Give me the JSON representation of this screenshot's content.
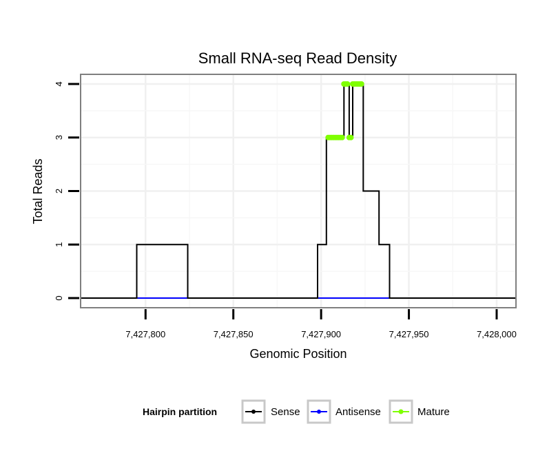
{
  "chart_data": {
    "type": "line",
    "title": "Small RNA-seq Read Density",
    "xlabel": "Genomic Position",
    "ylabel": "Total Reads",
    "xlim": [
      7427763,
      7428011
    ],
    "ylim": [
      -0.18,
      4.18
    ],
    "x_ticks": [
      7427800,
      7427850,
      7427900,
      7427950,
      7428000
    ],
    "x_tick_labels": [
      "7,427,800",
      "7,427,850",
      "7,427,900",
      "7,427,950",
      "7,428,000"
    ],
    "y_ticks": [
      0,
      1,
      2,
      3,
      4
    ],
    "y_tick_labels": [
      "0",
      "1",
      "2",
      "3",
      "4"
    ],
    "grid": true,
    "legend": {
      "title": "Hairpin partition",
      "position": "bottom",
      "entries": [
        "Sense",
        "Antisense",
        "Mature"
      ]
    },
    "colors": {
      "sense": "#000000",
      "antisense": "#0000ff",
      "mature": "#7fff00"
    },
    "series": [
      {
        "name": "Sense",
        "x": [
          7427763,
          7427795,
          7427795,
          7427824,
          7427824,
          7427898,
          7427898,
          7427903,
          7427903,
          7427913,
          7427913,
          7427916,
          7427916,
          7427918,
          7427918,
          7427924,
          7427924,
          7427933,
          7427933,
          7427939,
          7427939,
          7428011
        ],
        "values": [
          0,
          0,
          1,
          1,
          0,
          0,
          1,
          1,
          3,
          3,
          4,
          4,
          3,
          3,
          4,
          4,
          2,
          2,
          1,
          1,
          0,
          0
        ]
      },
      {
        "name": "Antisense",
        "x": [
          7427795,
          7427824,
          7427898,
          7427939
        ],
        "values": [
          0,
          0,
          0,
          0
        ],
        "segments": [
          [
            0,
            1
          ],
          [
            2,
            3
          ]
        ]
      },
      {
        "name": "Mature",
        "x": [
          7427904,
          7427905,
          7427906,
          7427907,
          7427908,
          7427909,
          7427910,
          7427911,
          7427912,
          7427913,
          7427914,
          7427915,
          7427916,
          7427917,
          7427918,
          7427919,
          7427920,
          7427921,
          7427922,
          7427923
        ],
        "values": [
          3,
          3,
          3,
          3,
          3,
          3,
          3,
          3,
          3,
          4,
          4,
          4,
          3,
          3,
          4,
          4,
          4,
          4,
          4,
          4
        ]
      }
    ]
  }
}
